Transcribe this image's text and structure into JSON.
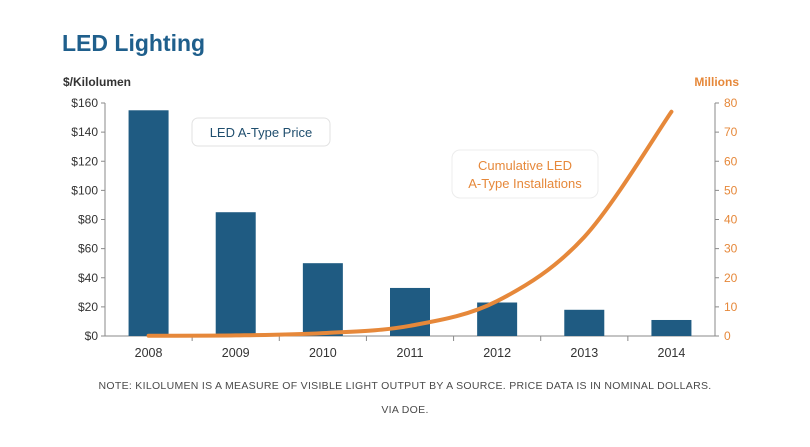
{
  "chart_data": {
    "type": "bar+line",
    "title": "LED Lighting",
    "categories": [
      "2008",
      "2009",
      "2010",
      "2011",
      "2012",
      "2013",
      "2014"
    ],
    "y_left": {
      "label": "$/Kilolumen",
      "ylim": [
        0,
        160
      ],
      "ticks": [
        "$0",
        "$20",
        "$40",
        "$60",
        "$80",
        "$100",
        "$120",
        "$140",
        "$160"
      ]
    },
    "y_right": {
      "label": "Millions",
      "ylim": [
        0,
        80
      ],
      "ticks": [
        "0",
        "10",
        "20",
        "30",
        "40",
        "50",
        "60",
        "70",
        "80"
      ]
    },
    "series": [
      {
        "name": "LED A-Type Price",
        "type": "bar",
        "axis": "left",
        "values": [
          155,
          85,
          50,
          33,
          23,
          18,
          11
        ]
      },
      {
        "name": "Cumulative LED A-Type Installations",
        "name_lines": [
          "Cumulative LED",
          "A-Type Installations"
        ],
        "type": "line",
        "axis": "right",
        "values": [
          0.1,
          0.2,
          1.0,
          3.5,
          12,
          34,
          77
        ]
      }
    ],
    "colors": {
      "bar": "#1f5b82",
      "line": "#e6883a",
      "axis_text": "#333333",
      "right_axis_text": "#e6883a",
      "title": "#1f5f8c"
    },
    "grid": false
  },
  "footer": {
    "line1": "NOTE: KILOLUMEN IS A MEASURE OF VISIBLE LIGHT OUTPUT BY A SOURCE. PRICE DATA IS IN NOMINAL DOLLARS.",
    "line2": "VIA DOE."
  }
}
